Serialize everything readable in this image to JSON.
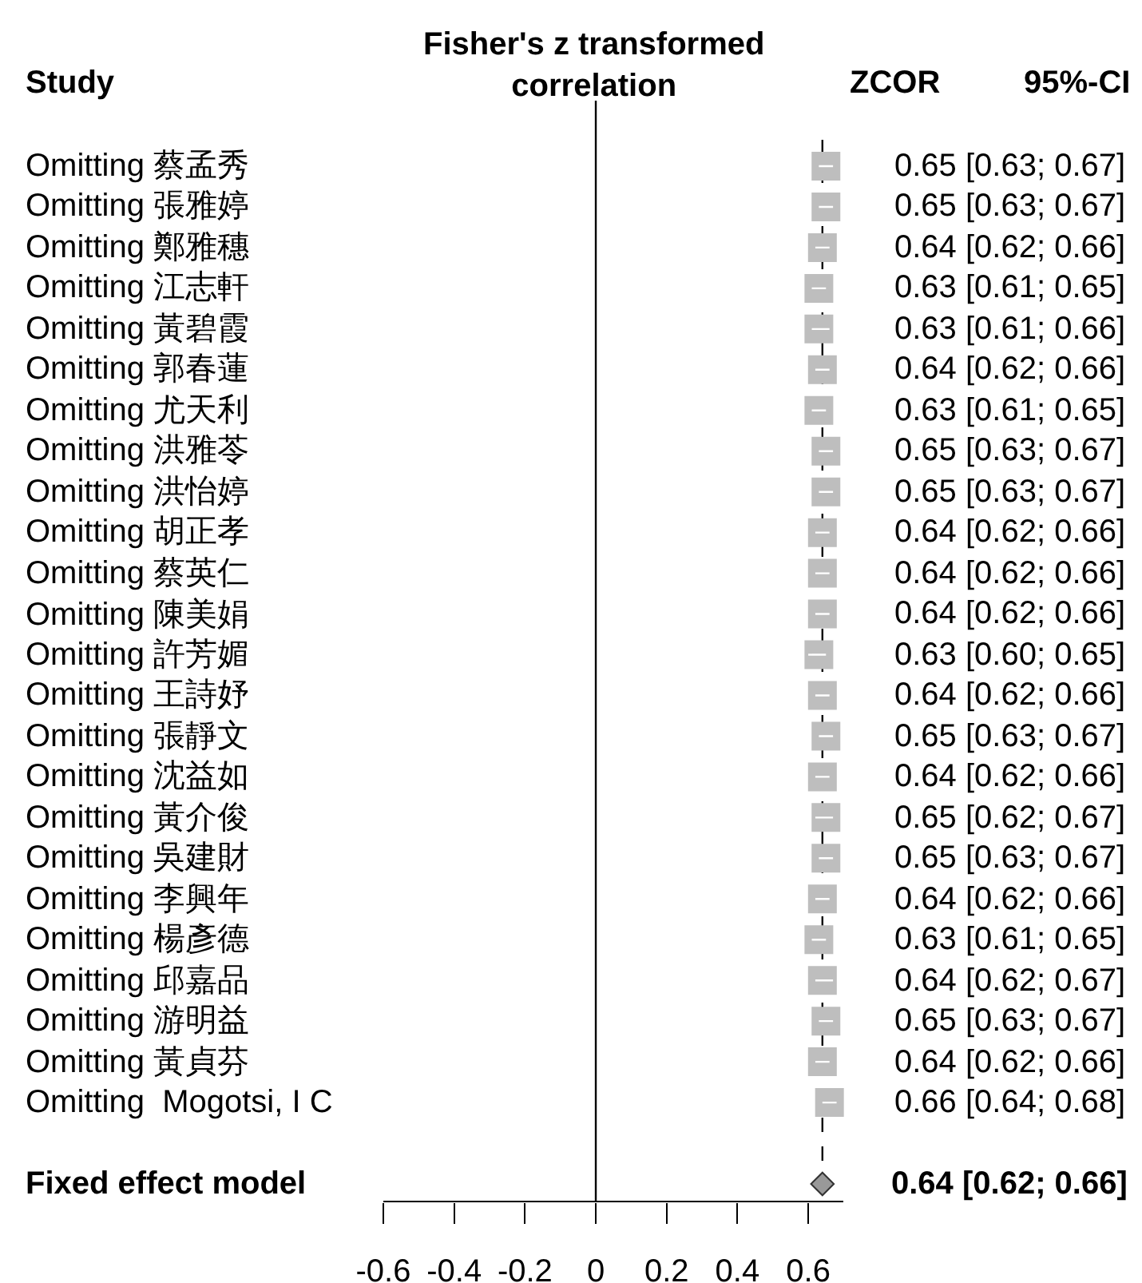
{
  "chart_data": {
    "type": "scatter",
    "orientation": "horizontal",
    "title": "Fisher's z transformed\ncorrelation",
    "annotations": [
      "Study",
      "ZCOR",
      "95%-CI"
    ],
    "categories": [
      "Omitting 蔡孟秀",
      "Omitting 張雅婷",
      "Omitting 鄭雅穗",
      "Omitting 江志軒",
      "Omitting 黃碧霞",
      "Omitting 郭春蓮",
      "Omitting 尤天利",
      "Omitting 洪雅苓",
      "Omitting 洪怡婷",
      "Omitting 胡正孝",
      "Omitting 蔡英仁",
      "Omitting 陳美娟",
      "Omitting 許芳媚",
      "Omitting 王詩妤",
      "Omitting 張靜文",
      "Omitting 沈益如",
      "Omitting 黃介俊",
      "Omitting 吳建財",
      "Omitting 李興年",
      "Omitting 楊彥德",
      "Omitting 邱嘉品",
      "Omitting 游明益",
      "Omitting 黃貞芬",
      "Omitting  Mogotsi, I C",
      null,
      "Fixed effect model"
    ],
    "series": [
      {
        "marker": "square",
        "color": "#bebebe",
        "values": [
          0.65,
          0.65,
          0.64,
          0.63,
          0.63,
          0.64,
          0.63,
          0.65,
          0.65,
          0.64,
          0.64,
          0.64,
          0.63,
          0.64,
          0.65,
          0.64,
          0.65,
          0.65,
          0.64,
          0.63,
          0.64,
          0.65,
          0.64,
          0.66,
          null,
          null
        ],
        "errors": [
          [
            0.63,
            0.67
          ],
          [
            0.63,
            0.67
          ],
          [
            0.62,
            0.66
          ],
          [
            0.61,
            0.65
          ],
          [
            0.61,
            0.66
          ],
          [
            0.62,
            0.66
          ],
          [
            0.61,
            0.65
          ],
          [
            0.63,
            0.67
          ],
          [
            0.63,
            0.67
          ],
          [
            0.62,
            0.66
          ],
          [
            0.62,
            0.66
          ],
          [
            0.62,
            0.66
          ],
          [
            0.6,
            0.65
          ],
          [
            0.62,
            0.66
          ],
          [
            0.63,
            0.67
          ],
          [
            0.62,
            0.66
          ],
          [
            0.62,
            0.67
          ],
          [
            0.63,
            0.67
          ],
          [
            0.62,
            0.66
          ],
          [
            0.61,
            0.65
          ],
          [
            0.62,
            0.67
          ],
          [
            0.63,
            0.67
          ],
          [
            0.62,
            0.66
          ],
          [
            0.64,
            0.68
          ],
          null,
          null
        ],
        "value_labels": [
          "0.65 [0.63; 0.67]",
          "0.65 [0.63; 0.67]",
          "0.64 [0.62; 0.66]",
          "0.63 [0.61; 0.65]",
          "0.63 [0.61; 0.66]",
          "0.64 [0.62; 0.66]",
          "0.63 [0.61; 0.65]",
          "0.65 [0.63; 0.67]",
          "0.65 [0.63; 0.67]",
          "0.64 [0.62; 0.66]",
          "0.64 [0.62; 0.66]",
          "0.64 [0.62; 0.66]",
          "0.63 [0.60; 0.65]",
          "0.64 [0.62; 0.66]",
          "0.65 [0.63; 0.67]",
          "0.64 [0.62; 0.66]",
          "0.65 [0.62; 0.67]",
          "0.65 [0.63; 0.67]",
          "0.64 [0.62; 0.66]",
          "0.63 [0.61; 0.65]",
          "0.64 [0.62; 0.67]",
          "0.65 [0.63; 0.67]",
          "0.64 [0.62; 0.66]",
          "0.66 [0.64; 0.68]",
          null,
          null
        ]
      },
      {
        "marker": "diamond",
        "color": "#999999",
        "values": [
          null,
          null,
          null,
          null,
          null,
          null,
          null,
          null,
          null,
          null,
          null,
          null,
          null,
          null,
          null,
          null,
          null,
          null,
          null,
          null,
          null,
          null,
          null,
          null,
          null,
          0.64
        ],
        "value_labels": [
          null,
          null,
          null,
          null,
          null,
          null,
          null,
          null,
          null,
          null,
          null,
          null,
          null,
          null,
          null,
          null,
          null,
          null,
          null,
          null,
          null,
          null,
          null,
          null,
          null,
          "0.64 [0.62; 0.66]"
        ]
      }
    ],
    "xlim": [
      -0.6,
      0.7
    ],
    "xticks": [
      -0.6,
      -0.4,
      -0.2,
      0,
      0.2,
      0.4,
      0.6
    ],
    "ref_lines": [
      {
        "axis": "x",
        "value": 0,
        "line_style": "solid"
      },
      {
        "axis": "x",
        "value": 0.64,
        "line_style": "dashed"
      }
    ]
  }
}
